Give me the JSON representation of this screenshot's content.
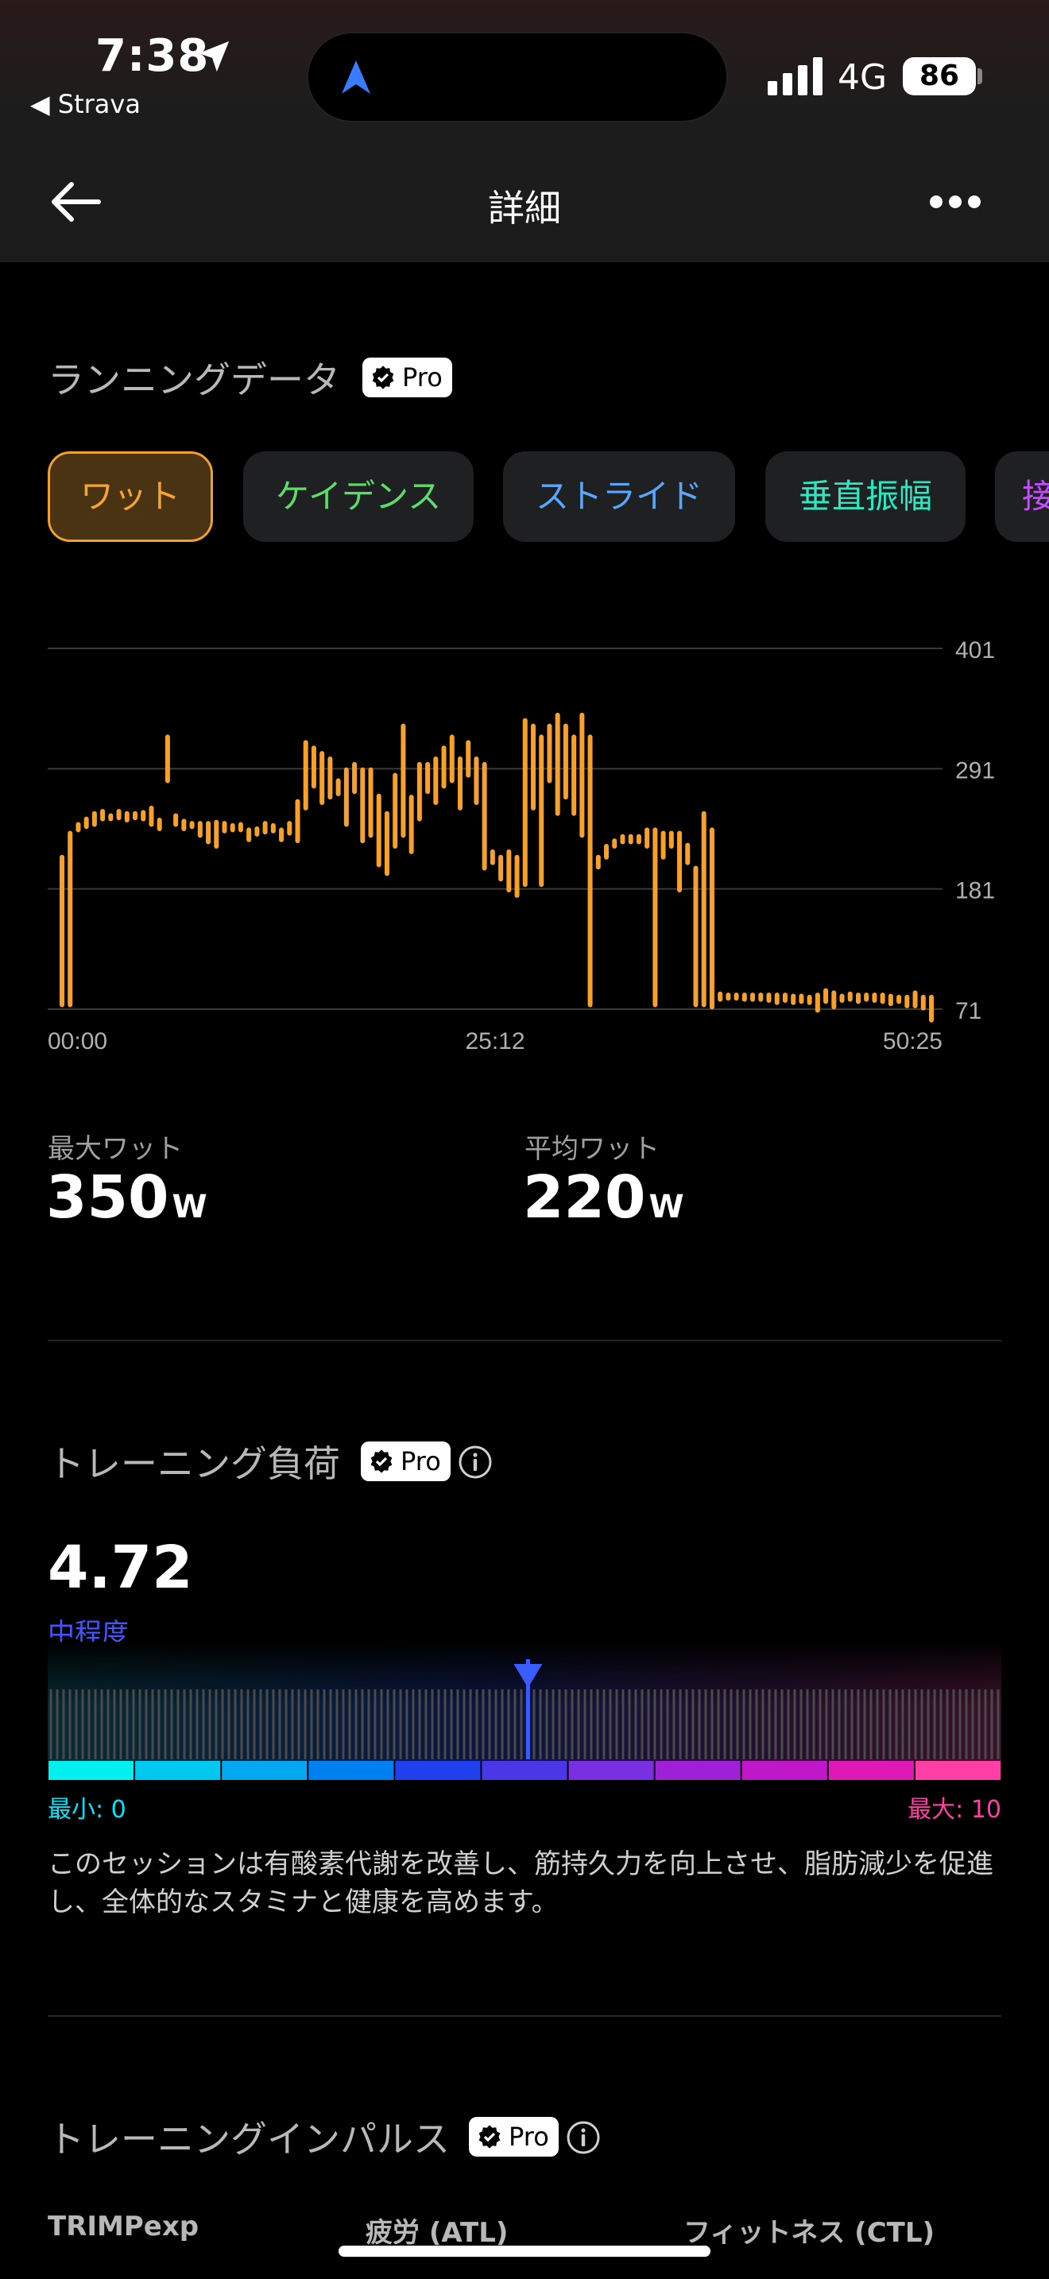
{
  "status_bar": {
    "time": "7:38",
    "back_app": "◀ Strava",
    "network": "4G",
    "battery": "86"
  },
  "nav": {
    "title": "詳細"
  },
  "running": {
    "title": "ランニングデータ",
    "pro_label": "Pro",
    "tabs": [
      {
        "label": "ワット",
        "color": "#f5a431"
      },
      {
        "label": "ケイデンス",
        "color": "#5ddc6a"
      },
      {
        "label": "ストライド",
        "color": "#5aa6ff"
      },
      {
        "label": "垂直振幅",
        "color": "#2ee6c0"
      },
      {
        "label": "接",
        "color": "#c64bff"
      }
    ]
  },
  "chart_data": {
    "type": "bar",
    "x_ticks": [
      "00:00",
      "25:12",
      "50:25"
    ],
    "y_ticks": [
      401,
      291,
      181,
      71
    ],
    "ylim": [
      71,
      401
    ],
    "color": "#f7a02b",
    "segments": [
      [
        75,
        210
      ],
      [
        75,
        232
      ],
      [
        235,
        240
      ],
      [
        238,
        245
      ],
      [
        240,
        250
      ],
      [
        245,
        252
      ],
      [
        246,
        248
      ],
      [
        246,
        252
      ],
      [
        244,
        250
      ],
      [
        246,
        250
      ],
      [
        245,
        251
      ],
      [
        240,
        255
      ],
      [
        236,
        244
      ],
      [
        280,
        320
      ],
      [
        240,
        248
      ],
      [
        236,
        243
      ],
      [
        238,
        241
      ],
      [
        230,
        241
      ],
      [
        224,
        241
      ],
      [
        220,
        242
      ],
      [
        234,
        241
      ],
      [
        235,
        239
      ],
      [
        235,
        240
      ],
      [
        226,
        235
      ],
      [
        231,
        236
      ],
      [
        233,
        241
      ],
      [
        234,
        239
      ],
      [
        226,
        235
      ],
      [
        232,
        241
      ],
      [
        225,
        261
      ],
      [
        255,
        315
      ],
      [
        275,
        310
      ],
      [
        260,
        305
      ],
      [
        265,
        300
      ],
      [
        268,
        280
      ],
      [
        240,
        290
      ],
      [
        270,
        295
      ],
      [
        225,
        290
      ],
      [
        230,
        290
      ],
      [
        203,
        266
      ],
      [
        195,
        250
      ],
      [
        220,
        285
      ],
      [
        230,
        330
      ],
      [
        215,
        265
      ],
      [
        245,
        295
      ],
      [
        270,
        295
      ],
      [
        260,
        300
      ],
      [
        275,
        310
      ],
      [
        280,
        320
      ],
      [
        255,
        300
      ],
      [
        285,
        315
      ],
      [
        260,
        300
      ],
      [
        200,
        295
      ],
      [
        205,
        215
      ],
      [
        190,
        210
      ],
      [
        180,
        215
      ],
      [
        175,
        210
      ],
      [
        185,
        335
      ],
      [
        255,
        330
      ],
      [
        185,
        320
      ],
      [
        280,
        330
      ],
      [
        250,
        340
      ],
      [
        265,
        330
      ],
      [
        250,
        320
      ],
      [
        230,
        340
      ],
      [
        75,
        320
      ],
      [
        201,
        210
      ],
      [
        210,
        220
      ],
      [
        220,
        225
      ],
      [
        224,
        229
      ],
      [
        224,
        229
      ],
      [
        224,
        229
      ],
      [
        220,
        235
      ],
      [
        75,
        235
      ],
      [
        210,
        232
      ],
      [
        220,
        232
      ],
      [
        180,
        232
      ],
      [
        205,
        221
      ],
      [
        75,
        200
      ],
      [
        75,
        250
      ],
      [
        73,
        235
      ],
      [
        80,
        85
      ],
      [
        81,
        84
      ],
      [
        81,
        84
      ],
      [
        80,
        84
      ],
      [
        80,
        84
      ],
      [
        80,
        84
      ],
      [
        79,
        84
      ],
      [
        77,
        84
      ],
      [
        79,
        84
      ],
      [
        77,
        83
      ],
      [
        78,
        83
      ],
      [
        77,
        82
      ],
      [
        70,
        84
      ],
      [
        78,
        88
      ],
      [
        73,
        86
      ],
      [
        79,
        83
      ],
      [
        80,
        85
      ],
      [
        78,
        84
      ],
      [
        80,
        84
      ],
      [
        79,
        84
      ],
      [
        78,
        84
      ],
      [
        76,
        83
      ],
      [
        78,
        82
      ],
      [
        74,
        82
      ],
      [
        74,
        86
      ],
      [
        72,
        82
      ],
      [
        55,
        82
      ]
    ]
  },
  "stats": [
    {
      "label": "最大ワット",
      "value": "350",
      "unit": "W"
    },
    {
      "label": "平均ワット",
      "value": "220",
      "unit": "W"
    }
  ],
  "training_load": {
    "title": "トレーニング負荷",
    "pro_label": "Pro",
    "value": "4.72",
    "level": "中程度",
    "min_label": "最小: 0",
    "max_label": "最大: 10",
    "value_fraction": 0.472,
    "description": "このセッションは有酸素代謝を改善し、筋持久力を向上させ、脂肪減少を促進し、全体的なスタミナと健康を高めます。",
    "gauge_colors": [
      "#00f0f0",
      "#00c8f0",
      "#00a8f0",
      "#0080f0",
      "#2040f0",
      "#4a38e8",
      "#7a30e0",
      "#a020d8",
      "#c018c8",
      "#e018b8",
      "#ff3fa5"
    ]
  },
  "training_impulse": {
    "title": "トレーニングインパルス",
    "pro_label": "Pro",
    "columns": [
      "TRIMPexp",
      "疲労 (ATL)",
      "フィットネス (CTL)"
    ]
  }
}
